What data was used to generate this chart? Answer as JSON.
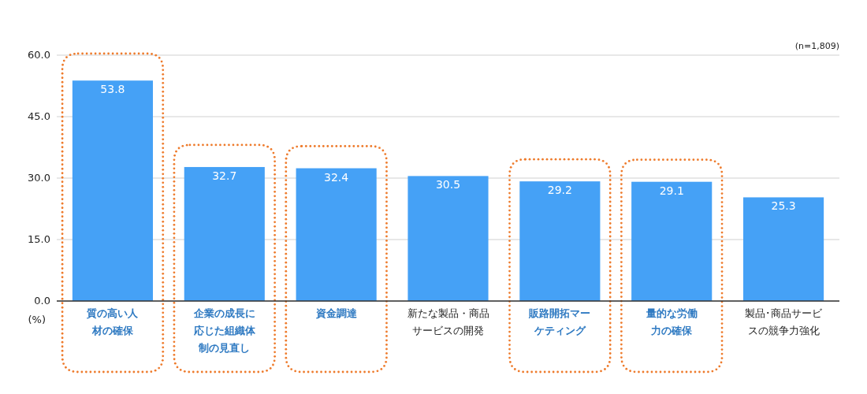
{
  "chart_data": {
    "type": "bar",
    "categories": [
      "質の高い人材の確保",
      "企業の成長に応じた組織体制の見直し",
      "資金調達",
      "新たな製品・商品サービスの開発",
      "販路開拓マーケティング",
      "量的な労働力の確保",
      "製品･商品サービスの競争力強化"
    ],
    "values": [
      53.8,
      32.7,
      32.4,
      30.5,
      29.2,
      29.1,
      25.3
    ],
    "color": "#45a1f6",
    "ylabel": "(%)",
    "ylim": [
      0,
      60
    ],
    "yticks": [
      {
        "value": 0,
        "label": "0.0"
      },
      {
        "value": 15,
        "label": "15.0"
      },
      {
        "value": 30,
        "label": "30.0"
      },
      {
        "value": 45,
        "label": "45.0"
      },
      {
        "value": 60,
        "label": "60.0"
      }
    ],
    "grid": "y",
    "data_labels": true,
    "annotations": [
      "(n=1,809)"
    ]
  }
}
